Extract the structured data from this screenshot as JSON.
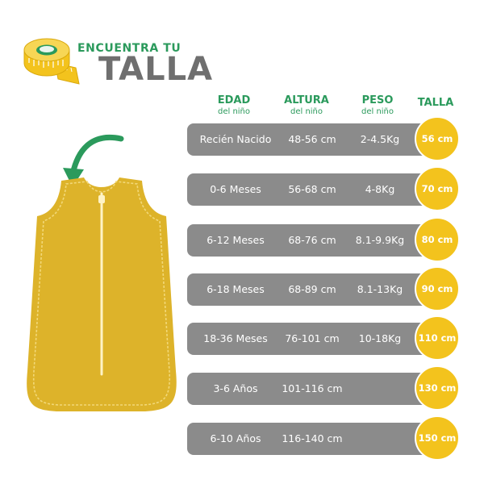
{
  "header": {
    "title_small": "ENCUENTRA TU",
    "title_large": "TALLA"
  },
  "columns": {
    "edad": {
      "label": "EDAD",
      "sub": "del niño"
    },
    "altura": {
      "label": "ALTURA",
      "sub": "del niño"
    },
    "peso": {
      "label": "PESO",
      "sub": "del niño"
    },
    "talla": {
      "label": "TALLA"
    }
  },
  "rows": [
    {
      "edad": "Recién Nacido",
      "altura": "48-56 cm",
      "peso": "2-4.5Kg",
      "talla": "56 cm"
    },
    {
      "edad": "0-6 Meses",
      "altura": "56-68 cm",
      "peso": "4-8Kg",
      "talla": "70 cm"
    },
    {
      "edad": "6-12 Meses",
      "altura": "68-76 cm",
      "peso": "8.1-9.9Kg",
      "talla": "80 cm"
    },
    {
      "edad": "6-18 Meses",
      "altura": "68-89 cm",
      "peso": "8.1-13Kg",
      "talla": "90 cm"
    },
    {
      "edad": "18-36 Meses",
      "altura": "76-101 cm",
      "peso": "10-18Kg",
      "talla": "110 cm"
    },
    {
      "edad": "3-6 Años",
      "altura": "101-116 cm",
      "peso": "",
      "talla": "130 cm"
    },
    {
      "edad": "6-10 Años",
      "altura": "116-140 cm",
      "peso": "",
      "talla": "150 cm"
    }
  ],
  "colors": {
    "green": "#2b9a5c",
    "yellow": "#f3c31d",
    "row_gray": "#8b8b8b",
    "title_gray": "#6f6f6f"
  },
  "icons": {
    "tape": "measuring-tape-icon",
    "arrow": "curved-arrow-icon",
    "garment": "sleeping-bag-illustration"
  }
}
